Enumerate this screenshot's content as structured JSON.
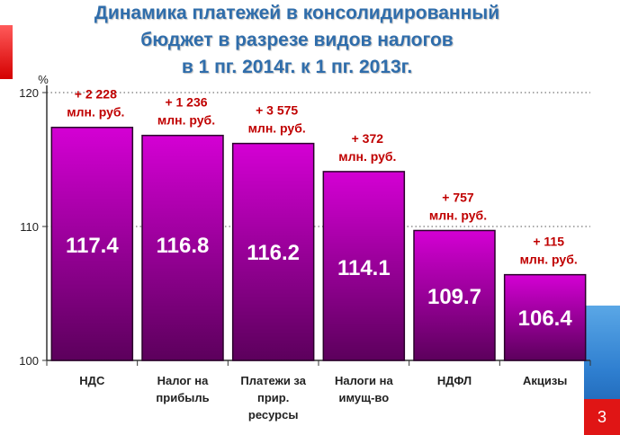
{
  "title_lines": [
    "Динамика платежей в консолидированный",
    "бюджет в разрезе видов налогов",
    "в 1 пг. 2014г. к 1 пг. 2013г."
  ],
  "page_number": "3",
  "colors": {
    "title": "#2f6dab",
    "bar_top": "#d400d4",
    "bar_bottom": "#5c005c",
    "annotation": "#c00000",
    "accent_red": "#e01515",
    "accent_blue": "#2f7fd0"
  },
  "chart_data": {
    "type": "bar",
    "y_unit": "%",
    "ylim": [
      100,
      120
    ],
    "yticks": [
      100,
      110,
      120
    ],
    "grid": "dotted-horizontal",
    "categories": [
      [
        "НДС"
      ],
      [
        "Налог на",
        "прибыль"
      ],
      [
        "Платежи за",
        "прир.",
        "ресурсы"
      ],
      [
        "Налоги на",
        "имущ-во"
      ],
      [
        "НДФЛ"
      ],
      [
        "Акцизы"
      ]
    ],
    "values": [
      117.4,
      116.8,
      116.2,
      114.1,
      109.7,
      106.4
    ],
    "value_labels": [
      "117.4",
      "116.8",
      "116.2",
      "114.1",
      "109.7",
      "106.4"
    ],
    "annotations": [
      [
        "+ 2 228",
        "млн. руб."
      ],
      [
        "+ 1 236",
        "млн. руб."
      ],
      [
        "+ 3 575",
        "млн. руб."
      ],
      [
        "+ 372",
        "млн. руб."
      ],
      [
        "+ 757",
        "млн. руб."
      ],
      [
        "+ 115",
        "млн. руб."
      ]
    ]
  }
}
